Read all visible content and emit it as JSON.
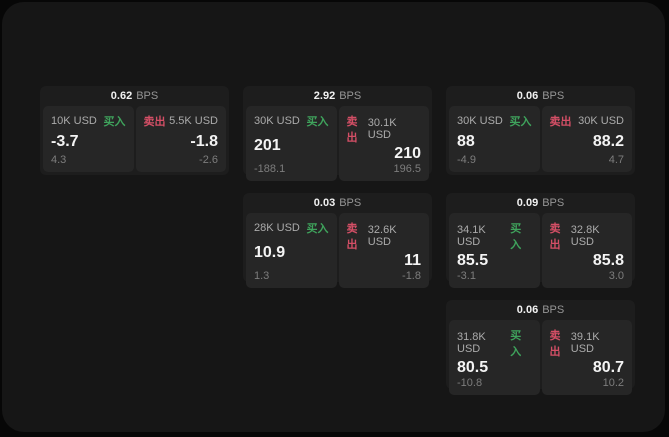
{
  "labels": {
    "bps_unit": "BPS",
    "buy": "买入",
    "sell": "卖出"
  },
  "colors": {
    "buy_accent": "#3fa35c",
    "sell_accent": "#d44f66",
    "window_bg": "#161616",
    "card_bg": "#1d1d1d",
    "panel_bg": "#262626"
  },
  "cards": [
    {
      "bps": "0.62",
      "buy": {
        "size": "10K USD",
        "price": "-3.7",
        "change": "4.3"
      },
      "sell": {
        "size": "5.5K USD",
        "price": "-1.8",
        "change": "-2.6"
      }
    },
    {
      "bps": "2.92",
      "buy": {
        "size": "30K USD",
        "price": "201",
        "change": "-188.1"
      },
      "sell": {
        "size": "30.1K USD",
        "price": "210",
        "change": "196.5"
      }
    },
    {
      "bps": "0.06",
      "buy": {
        "size": "30K USD",
        "price": "88",
        "change": "-4.9"
      },
      "sell": {
        "size": "30K USD",
        "price": "88.2",
        "change": "4.7"
      }
    },
    {
      "bps": "0.03",
      "buy": {
        "size": "28K USD",
        "price": "10.9",
        "change": "1.3"
      },
      "sell": {
        "size": "32.6K USD",
        "price": "11",
        "change": "-1.8"
      }
    },
    {
      "bps": "0.09",
      "buy": {
        "size": "34.1K USD",
        "price": "85.5",
        "change": "-3.1"
      },
      "sell": {
        "size": "32.8K USD",
        "price": "85.8",
        "change": "3.0"
      }
    },
    {
      "bps": "0.06",
      "buy": {
        "size": "31.8K USD",
        "price": "80.5",
        "change": "-10.8"
      },
      "sell": {
        "size": "39.1K USD",
        "price": "80.7",
        "change": "10.2"
      }
    }
  ]
}
